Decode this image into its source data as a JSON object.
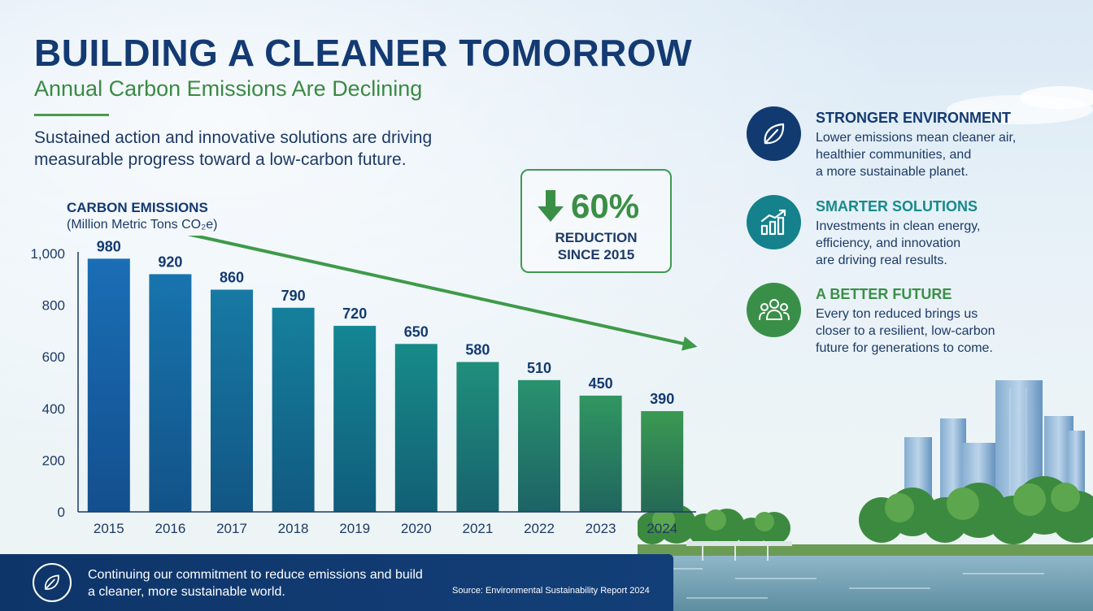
{
  "header": {
    "title": "BUILDING A CLEANER TOMORROW",
    "subtitle": "Annual Carbon Emissions Are Declining",
    "intro": "Sustained action and innovative solutions are driving measurable progress toward a low-carbon future."
  },
  "callout": {
    "value": "60%",
    "label": "REDUCTION\nSINCE 2015",
    "icon": "arrow-down-icon"
  },
  "chart_data": {
    "type": "bar",
    "title": "CARBON EMISSIONS",
    "ylabel": "(Million Metric Tons CO₂e)",
    "categories": [
      "2015",
      "2016",
      "2017",
      "2018",
      "2019",
      "2020",
      "2021",
      "2022",
      "2023",
      "2024"
    ],
    "values": [
      980,
      920,
      860,
      790,
      720,
      650,
      580,
      510,
      450,
      390
    ],
    "data_labels": [
      "980",
      "920",
      "860",
      "790",
      "720",
      "650",
      "580",
      "510",
      "450",
      "390"
    ],
    "yticks": [
      "0",
      "200",
      "400",
      "600",
      "800",
      "1,000"
    ],
    "ytick_values": [
      0,
      200,
      400,
      600,
      800,
      1000
    ],
    "ylim": [
      0,
      1000
    ],
    "grid": false,
    "trend_arrow": true,
    "colors": {
      "bar_start": "#1a6eb5",
      "bar_mid": "#13898f",
      "bar_end": "#3a9a52",
      "trend": "#3e9a48"
    }
  },
  "benefits": [
    {
      "title": "STRONGER ENVIRONMENT",
      "text": "Lower emissions mean cleaner air,\nhealthier communities, and\na more sustainable planet.",
      "icon": "leaf-icon",
      "color": "#113a70",
      "title_color": "#133a72"
    },
    {
      "title": "SMARTER SOLUTIONS",
      "text": "Investments in clean energy,\nefficiency, and innovation\nare driving real results.",
      "icon": "growth-chart-icon",
      "color": "#14818c",
      "title_color": "#168a8c"
    },
    {
      "title": "A BETTER FUTURE",
      "text": "Every ton reduced brings us\ncloser to a resilient, low-carbon\nfuture for generations to come.",
      "icon": "community-icon",
      "color": "#3a8f48",
      "title_color": "#3a8f48"
    }
  ],
  "footer": {
    "text": "Continuing our commitment to reduce emissions and build\na cleaner, more sustainable world.",
    "source": "Source: Environmental Sustainability Report 2024",
    "icon": "leaf-icon"
  }
}
